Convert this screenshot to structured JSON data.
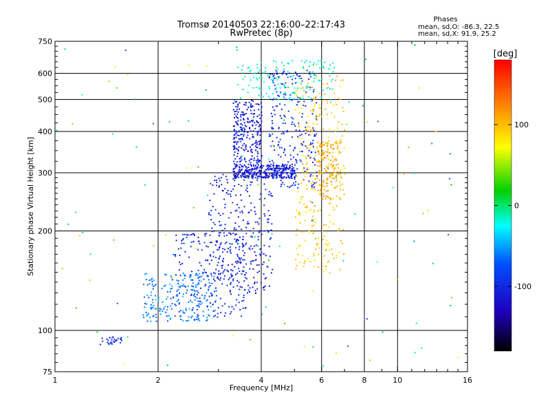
{
  "chart_data": {
    "type": "scatter",
    "title": "Tromsø 20140503 22:16:00–22:17:43",
    "subtitle": "RwPretec (8p)",
    "xlabel": "Frequency [MHz]",
    "ylabel": "Stationary phase Virtual Height [km]",
    "x_scale": "log",
    "y_scale": "log",
    "xlim": [
      1,
      16
    ],
    "ylim": [
      75,
      750
    ],
    "x_ticks": [
      1,
      2,
      4,
      6,
      8,
      10,
      16
    ],
    "x_tick_labels": [
      "1",
      "2",
      "4",
      "6",
      "8",
      "10",
      "16"
    ],
    "y_ticks": [
      75,
      100,
      200,
      300,
      400,
      500,
      600,
      750
    ],
    "y_tick_labels": [
      "75",
      "100",
      "200",
      "300",
      "400",
      "500",
      "600",
      "750"
    ],
    "grid": true,
    "phase_stats": {
      "heading": "Phases",
      "line_o": "mean, sd,O: -86.3, 22.5",
      "line_x": "mean, sd,X:  91.9, 25.2"
    },
    "colorbar": {
      "label": "[deg]",
      "range": [
        -180,
        180
      ],
      "ticks": [
        100,
        0,
        -100
      ],
      "tick_labels": [
        "100",
        "0",
        "-100"
      ],
      "colors": [
        "#ff0000",
        "#ff8000",
        "#ffff00",
        "#00d000",
        "#00ffff",
        "#0050ff",
        "#2000c0",
        "#000000"
      ]
    },
    "clusters": [
      {
        "name": "blue-arc-lower",
        "x": [
          1.35,
          1.6
        ],
        "y": [
          91,
          96
        ],
        "phase": -95,
        "n": 30
      },
      {
        "name": "cyan-trace",
        "x": [
          1.8,
          2.95
        ],
        "y": [
          107,
          150
        ],
        "phase": -60,
        "n": 230
      },
      {
        "name": "blue-trace-mid",
        "x": [
          2.2,
          3.6
        ],
        "y": [
          110,
          200
        ],
        "phase": -100,
        "n": 200
      },
      {
        "name": "blue-rise",
        "x": [
          2.8,
          4.3
        ],
        "y": [
          130,
          300
        ],
        "phase": -105,
        "n": 300
      },
      {
        "name": "e-f-band",
        "x": [
          3.3,
          5.0
        ],
        "y": [
          290,
          320
        ],
        "phase": -110,
        "n": 320
      },
      {
        "name": "f-upper",
        "x": [
          3.3,
          4.0
        ],
        "y": [
          320,
          500
        ],
        "phase": -110,
        "n": 250
      },
      {
        "name": "f-wall",
        "x": [
          4.2,
          5.8
        ],
        "y": [
          270,
          620
        ],
        "phase": -95,
        "n": 250
      },
      {
        "name": "x-mode",
        "x": [
          5.0,
          7.0
        ],
        "y": [
          150,
          600
        ],
        "phase": 95,
        "n": 280
      },
      {
        "name": "x-hotspot",
        "x": [
          5.8,
          6.8
        ],
        "y": [
          250,
          380
        ],
        "phase": 110,
        "n": 150
      },
      {
        "name": "top-spread",
        "x": [
          3.4,
          6.5
        ],
        "y": [
          500,
          660
        ],
        "phase": -20,
        "n": 140
      },
      {
        "name": "noise",
        "x": [
          1.0,
          15.0
        ],
        "y": [
          78,
          740
        ],
        "phase": 0,
        "n": 120
      }
    ]
  }
}
